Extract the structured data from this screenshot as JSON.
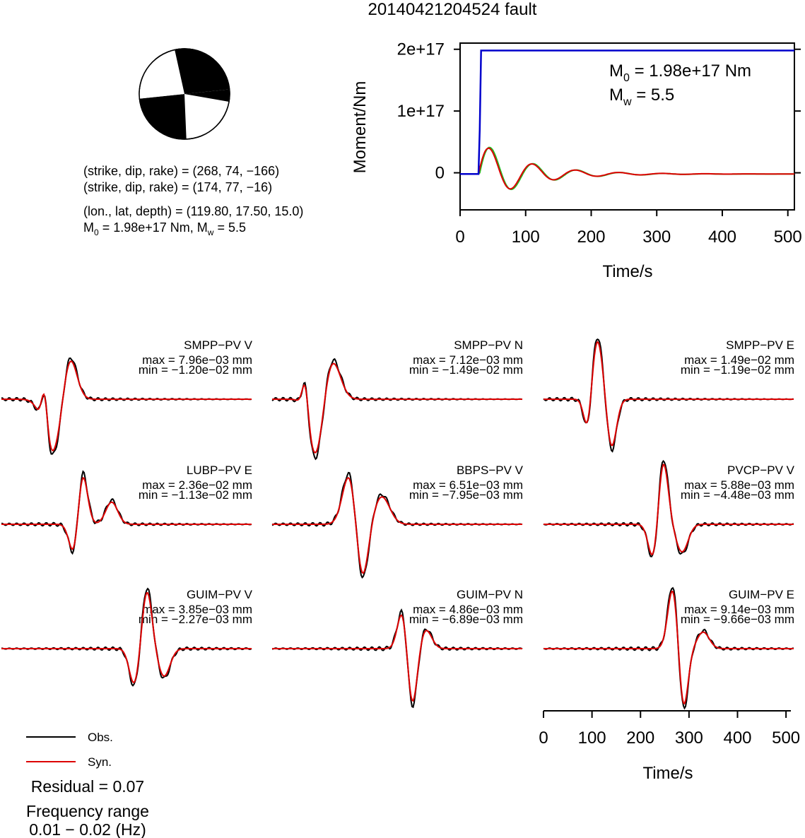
{
  "title": "20140421204524 fault",
  "beachball": {
    "colors": {
      "fill": "#000000",
      "bg": "#ffffff"
    }
  },
  "params": {
    "line1": "(strike, dip, rake) = (268, 74, −166)",
    "line2": "(strike, dip, rake) = (174, 77, −16)",
    "line3": "(lon., lat, depth) = (119.80, 17.50, 15.0)",
    "line4_m": "M",
    "line4_sub": "0",
    "line4_a": " = 1.98e+17 Nm, M",
    "line4_sub2": "w",
    "line4_b": " = 5.5"
  },
  "moment_chart": {
    "type": "line",
    "ylabel": "Moment/Nm",
    "xlabel": "Time/s",
    "xlim": [
      0,
      510
    ],
    "ylim": [
      -6e+16,
      2.1e+17
    ],
    "xticks": [
      0,
      100,
      200,
      300,
      400,
      500
    ],
    "yticks": [
      {
        "v": 0,
        "label": "0"
      },
      {
        "v": 1e+17,
        "label": "1e+17"
      },
      {
        "v": 2e+17,
        "label": "2e+17"
      }
    ],
    "annot": {
      "m0_prefix": "M",
      "m0_sub": "0",
      "m0_text": " = 1.98e+17 Nm",
      "mw_prefix": "M",
      "mw_sub": "w",
      "mw_text": " = 5.5"
    },
    "colors": {
      "cumulative": "#0000cc",
      "rate_a": "#22bb22",
      "rate_b": "#dd0000"
    },
    "cumulative": {
      "x": [
        0,
        28,
        30,
        32,
        510
      ],
      "y": [
        -2000000000000000.0,
        -2000000000000000.0,
        7e+16,
        1.98e+17,
        1.98e+17
      ]
    }
  },
  "traces": [
    {
      "station": "SMPP−PV V",
      "max": "max = 7.96e−03 mm",
      "min": "min = −1.20e−02 mm"
    },
    {
      "station": "SMPP−PV N",
      "max": "max = 7.12e−03 mm",
      "min": "min = −1.49e−02 mm"
    },
    {
      "station": "SMPP−PV E",
      "max": "max = 1.49e−02 mm",
      "min": "min = −1.19e−02 mm"
    },
    {
      "station": "LUBP−PV E",
      "max": "max = 2.36e−02 mm",
      "min": "min = −1.13e−02 mm"
    },
    {
      "station": "BBPS−PV V",
      "max": "max = 6.51e−03 mm",
      "min": "min = −7.95e−03 mm"
    },
    {
      "station": "PVCP−PV V",
      "max": "max = 5.88e−03 mm",
      "min": "min = −4.48e−03 mm"
    },
    {
      "station": "GUIM−PV V",
      "max": "max = 3.85e−03 mm",
      "min": "min = −2.27e−03 mm"
    },
    {
      "station": "GUIM−PV N",
      "max": "max = 4.86e−03 mm",
      "min": "min = −6.89e−03 mm"
    },
    {
      "station": "GUIM−PV E",
      "max": "max = 9.14e−03 mm",
      "min": "min = −9.66e−03 mm"
    }
  ],
  "trace_axis": {
    "xlabel": "Time/s",
    "xticks": [
      0,
      100,
      200,
      300,
      400,
      500
    ],
    "xlim": [
      0,
      510
    ]
  },
  "legend": {
    "obs": "Obs.",
    "syn": "Syn.",
    "colors": {
      "obs": "#000000",
      "syn": "#dd0000"
    }
  },
  "residual": "Residual = 0.07",
  "freq_title": "Frequency range",
  "freq_range": "0.01 − 0.02 (Hz)"
}
